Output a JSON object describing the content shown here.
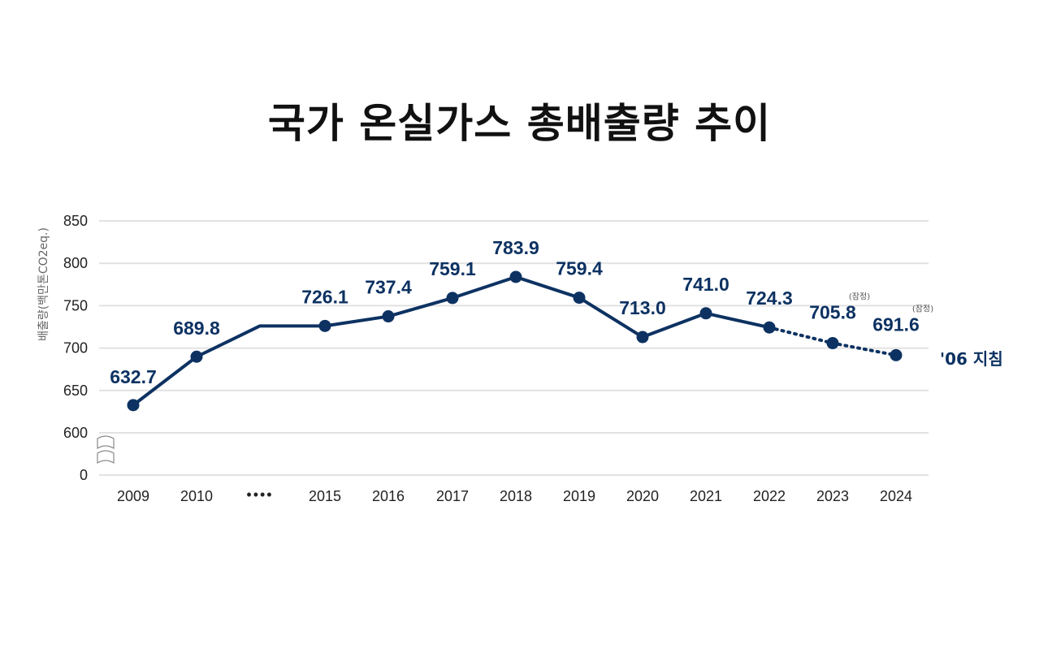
{
  "chart_data": {
    "type": "line",
    "title": "국가 온실가스 총배출량 추이",
    "ylabel": "배출량(백만톤CO2eq.)",
    "y_ticks": [
      "0",
      "600",
      "650",
      "700",
      "750",
      "800",
      "850"
    ],
    "ylim": [
      600,
      850
    ],
    "axis_break": true,
    "grid": true,
    "categories": [
      "2009",
      "2010",
      "••••",
      "2015",
      "2016",
      "2017",
      "2018",
      "2019",
      "2020",
      "2021",
      "2022",
      "2023",
      "2024"
    ],
    "series": [
      {
        "values": [
          632.7,
          689.8,
          726.1,
          726.1,
          737.4,
          759.1,
          783.9,
          759.4,
          713.0,
          741.0,
          724.3,
          705.8,
          691.6
        ],
        "labels": [
          "632.7",
          "689.8",
          "",
          "726.1",
          "737.4",
          "759.1",
          "783.9",
          "759.4",
          "713.0",
          "741.0",
          "724.3",
          "705.8",
          "691.6"
        ],
        "markers": [
          true,
          true,
          false,
          true,
          true,
          true,
          true,
          true,
          true,
          true,
          true,
          true,
          true
        ],
        "provisional_labels": [
          "",
          "",
          "",
          "",
          "",
          "",
          "",
          "",
          "",
          "",
          "",
          "(잠정)",
          "(잠정)"
        ],
        "dotted_from_index": 10
      }
    ],
    "end_annotation": "'06 지침",
    "colors": {
      "line": "#0d3262",
      "grid": "#e2e2e2",
      "text": "#222222",
      "title": "#111111"
    }
  }
}
